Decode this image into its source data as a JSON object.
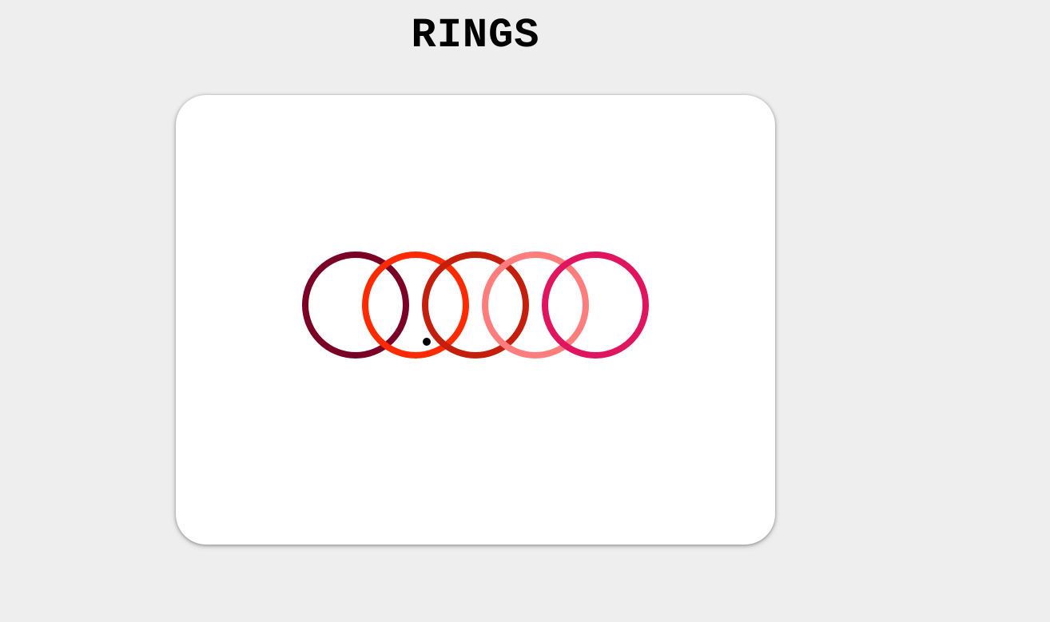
{
  "game": {
    "title": "RINGS"
  },
  "rings": [
    {
      "id": "ring-1",
      "color": "#7a0026"
    },
    {
      "id": "ring-2",
      "color": "#ff2a00"
    },
    {
      "id": "ring-3",
      "color": "#c41e0d"
    },
    {
      "id": "ring-4",
      "color": "#ff7d7d"
    },
    {
      "id": "ring-5",
      "color": "#e0145f"
    }
  ],
  "ball": {
    "color": "#000000"
  }
}
